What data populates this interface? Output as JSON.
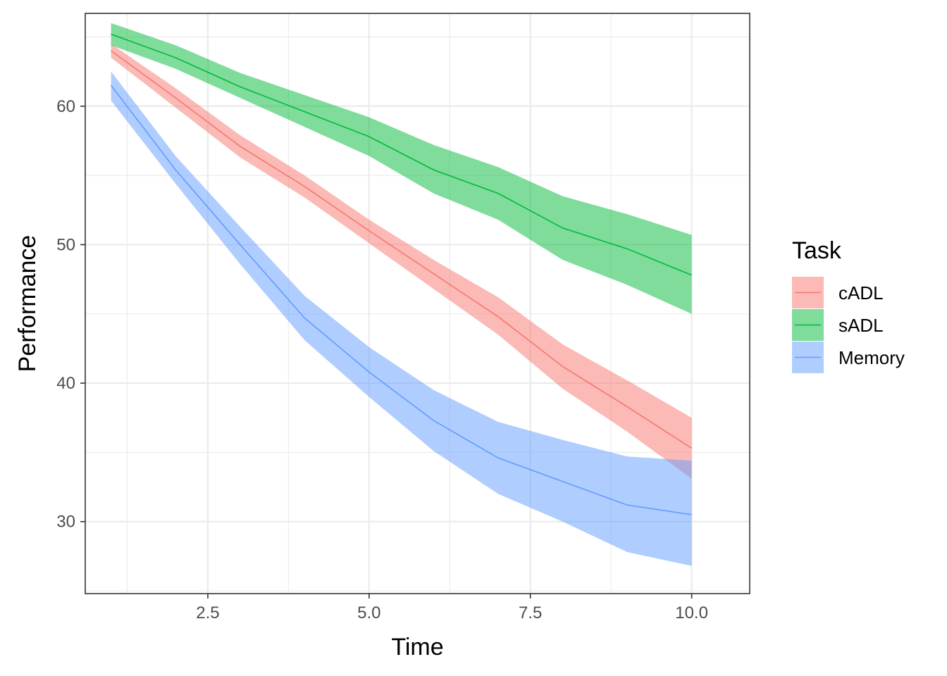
{
  "chart_data": {
    "type": "line",
    "xlabel": "Time",
    "ylabel": "Performance",
    "xlim": [
      0.6,
      10.9
    ],
    "ylim": [
      24.8,
      66.7
    ],
    "x_ticks": [
      2.5,
      5.0,
      7.5,
      10.0
    ],
    "x_tick_labels": [
      "2.5",
      "5.0",
      "7.5",
      "10.0"
    ],
    "y_ticks": [
      30,
      40,
      50,
      60
    ],
    "y_tick_labels": [
      "30",
      "40",
      "50",
      "60"
    ],
    "grid": true,
    "legend": {
      "title": "Task",
      "position": "right"
    },
    "x": [
      1,
      2,
      3,
      4,
      5,
      6,
      7,
      8,
      9,
      10
    ],
    "series": [
      {
        "name": "cADL",
        "color": "#F8766D",
        "values": [
          64.0,
          60.6,
          57.1,
          54.2,
          51.0,
          47.9,
          44.8,
          41.2,
          38.3,
          35.3
        ],
        "lower": [
          63.5,
          59.9,
          56.3,
          53.4,
          50.1,
          46.8,
          43.5,
          39.6,
          36.5,
          33.1
        ],
        "upper": [
          64.5,
          61.3,
          57.9,
          55.0,
          51.8,
          48.9,
          46.2,
          42.8,
          40.2,
          37.5
        ]
      },
      {
        "name": "sADL",
        "color": "#00BA38",
        "values": [
          65.2,
          63.5,
          61.4,
          59.6,
          57.8,
          55.4,
          53.7,
          51.2,
          49.7,
          47.8
        ],
        "lower": [
          64.4,
          62.7,
          60.6,
          58.5,
          56.4,
          53.7,
          51.8,
          48.9,
          47.1,
          45.0
        ],
        "upper": [
          66.0,
          64.4,
          62.4,
          60.8,
          59.2,
          57.2,
          55.6,
          53.5,
          52.2,
          50.7
        ]
      },
      {
        "name": "Memory",
        "color": "#619CFF",
        "values": [
          61.5,
          55.4,
          50.0,
          44.7,
          40.8,
          37.3,
          34.6,
          32.9,
          31.2,
          30.5
        ],
        "lower": [
          60.4,
          54.4,
          48.6,
          43.1,
          39.0,
          35.1,
          32.0,
          30.0,
          27.8,
          26.8
        ],
        "upper": [
          62.5,
          56.4,
          51.3,
          46.3,
          42.6,
          39.5,
          37.2,
          35.9,
          34.7,
          34.4
        ]
      }
    ]
  }
}
